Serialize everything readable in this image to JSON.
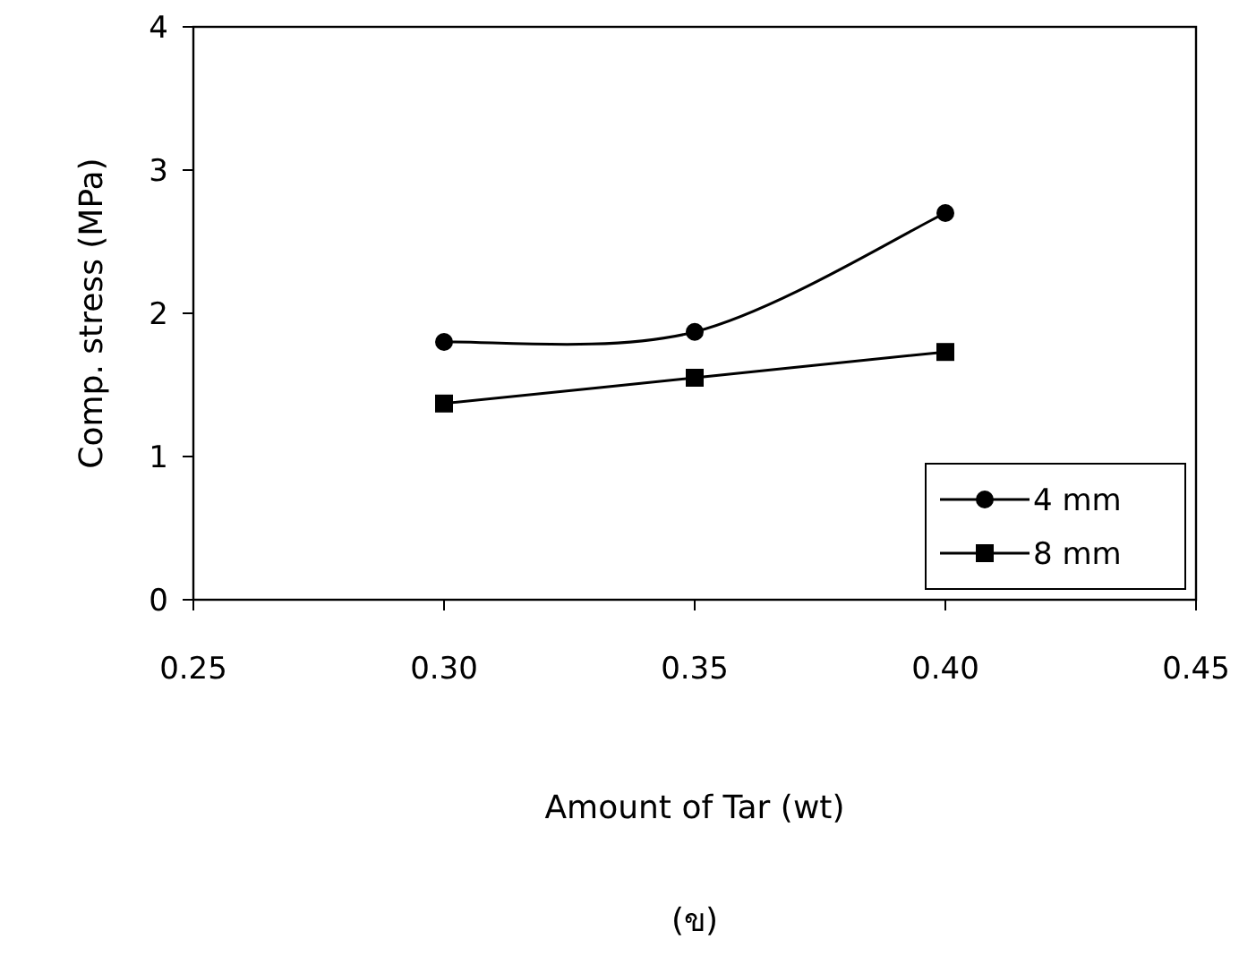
{
  "chart_data": {
    "type": "line",
    "xlabel": "Amount of Tar (wt)",
    "ylabel": "Comp. stress (MPa)",
    "annotations": [
      "(ข)"
    ],
    "xlim": [
      0.25,
      0.45
    ],
    "xticks": [
      {
        "value": 0.25,
        "label": "0.25"
      },
      {
        "value": 0.3,
        "label": "0.30"
      },
      {
        "value": 0.35,
        "label": "0.35"
      },
      {
        "value": 0.4,
        "label": "0.40"
      },
      {
        "value": 0.45,
        "label": "0.45"
      }
    ],
    "ylim": [
      0,
      4
    ],
    "yticks": [
      0,
      1,
      2,
      3,
      4
    ],
    "grid": false,
    "legend": "bottom right",
    "x": [
      0.3,
      0.35,
      0.4
    ],
    "series": [
      {
        "name": "4 mm",
        "color": "#000000",
        "marker": "circle",
        "values": [
          1.8,
          1.87,
          2.7
        ]
      },
      {
        "name": "8 mm",
        "color": "#000000",
        "marker": "square",
        "values": [
          1.37,
          1.55,
          1.73
        ]
      }
    ]
  }
}
